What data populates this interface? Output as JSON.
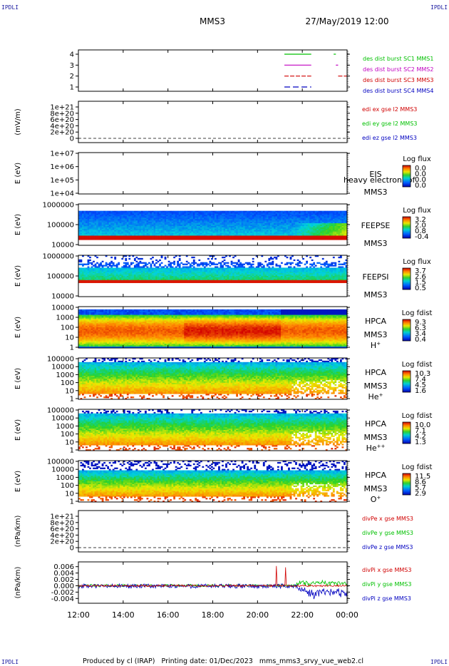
{
  "header": {
    "corner_tl": "IPDLI",
    "corner_tr": "IPDLI",
    "corner_bl": "IPDLI",
    "corner_br": "IPDLI",
    "mission": "MMS3",
    "datetime": "27/May/2019 12:00"
  },
  "footer": {
    "text": "Produced by cl (IRAP)   Printing date: 01/Dec/2023   mms_mms3_srvy_vue_web2.cl"
  },
  "chart_data": {
    "type": "multi-panel",
    "x_ticks": [
      "12:00",
      "14:00",
      "16:00",
      "18:00",
      "20:00",
      "22:00",
      "00:00"
    ],
    "x_range_hours": [
      0,
      12
    ],
    "panels": [
      {
        "id": "burst",
        "type": "line",
        "yticks": [
          "4",
          "3",
          "2",
          "1"
        ],
        "series": [
          {
            "name": "des dist burst SC1 MMS1",
            "color": "#00c000",
            "level": 4,
            "intervals_hours": [
              [
                9.2,
                10.4
              ],
              [
                11.4,
                11.5
              ]
            ]
          },
          {
            "name": "des dist burst SC2 MMS2",
            "color": "#c000c0",
            "level": 3,
            "intervals_hours": [
              [
                9.2,
                10.4
              ],
              [
                11.5,
                11.6
              ]
            ]
          },
          {
            "name": "des dist burst SC3 MMS3",
            "color": "#d00000",
            "level": 2,
            "intervals_hours": [
              [
                9.2,
                10.4
              ],
              [
                11.6,
                12.0
              ]
            ]
          },
          {
            "name": "des dist burst SC4 MMS4",
            "color": "#0000c0",
            "level": 1,
            "intervals_hours": [
              [
                9.2,
                10.4
              ]
            ]
          }
        ]
      },
      {
        "id": "edi",
        "type": "line",
        "ylabel": "(mV/m)",
        "yticks": [
          "1e+21",
          "8e+20",
          "6e+20",
          "4e+20",
          "2e+20",
          "0"
        ],
        "series": [
          {
            "name": "edi ex gse l2 MMS3",
            "color": "#d00000"
          },
          {
            "name": "edi ey gse l2 MMS3",
            "color": "#00c000"
          },
          {
            "name": "edi ez gse l2 MMS3",
            "color": "#0000c0"
          }
        ]
      },
      {
        "id": "eis",
        "type": "heatmap",
        "ylabel": "E (eV)",
        "yticks": [
          "1e+07",
          "1e+06",
          "1e+05",
          "1e+04"
        ],
        "labels": [
          "EIS",
          "MMS3"
        ],
        "overlay_text": "heavy electron tof",
        "cbar_title": "Log flux",
        "cbar_ticks": [
          "0.0",
          "0.0",
          "0.0",
          "0.0"
        ]
      },
      {
        "id": "feepse",
        "type": "heatmap",
        "ylabel": "E (eV)",
        "yticks": [
          "1000000",
          "100000",
          "10000"
        ],
        "labels": [
          "FEEPSE",
          "MMS3"
        ],
        "cbar_title": "Log flux",
        "cbar_ticks": [
          "3.2",
          "2.0",
          "0.8",
          "-0.4"
        ]
      },
      {
        "id": "feepsi",
        "type": "heatmap",
        "ylabel": "E (eV)",
        "yticks": [
          "1000000",
          "100000",
          "10000"
        ],
        "labels": [
          "FEEPSI",
          "MMS3"
        ],
        "cbar_title": "Log flux",
        "cbar_ticks": [
          "3.7",
          "2.6",
          "1.5",
          "0.5"
        ]
      },
      {
        "id": "hpca_h",
        "type": "heatmap",
        "ylabel": "E (eV)",
        "yticks": [
          "10000",
          "1000",
          "100",
          "10",
          "1"
        ],
        "labels": [
          "HPCA",
          "MMS3"
        ],
        "species": "H",
        "species_sup": "+",
        "cbar_title": "Log fdist",
        "cbar_ticks": [
          "9.3",
          "6.3",
          "3.4",
          "0.4"
        ]
      },
      {
        "id": "hpca_he",
        "type": "heatmap",
        "ylabel": "E (eV)",
        "yticks": [
          "100000",
          "10000",
          "1000",
          "100",
          "10",
          "1"
        ],
        "labels": [
          "HPCA",
          "MMS3"
        ],
        "species": "He",
        "species_sup": "+",
        "cbar_title": "Log fdist",
        "cbar_ticks": [
          "10.3",
          "7.4",
          "4.5",
          "1.6"
        ]
      },
      {
        "id": "hpca_hepp",
        "type": "heatmap",
        "ylabel": "E (eV)",
        "yticks": [
          "100000",
          "10000",
          "1000",
          "100",
          "10",
          "1"
        ],
        "labels": [
          "HPCA",
          "MMS3"
        ],
        "species": "He",
        "species_sup": "++",
        "cbar_title": "Log fdist",
        "cbar_ticks": [
          "10.0",
          "7.1",
          "4.2",
          "1.3"
        ]
      },
      {
        "id": "hpca_o",
        "type": "heatmap",
        "ylabel": "E (eV)",
        "yticks": [
          "100000",
          "10000",
          "1000",
          "100",
          "10",
          "1"
        ],
        "labels": [
          "HPCA",
          "MMS3"
        ],
        "species": "O",
        "species_sup": "+",
        "cbar_title": "Log fdist",
        "cbar_ticks": [
          "11.5",
          "8.6",
          "5.7",
          "2.9"
        ]
      },
      {
        "id": "divpe",
        "type": "line",
        "ylabel": "(nPa/km)",
        "yticks": [
          "1e+21",
          "8e+20",
          "6e+20",
          "4e+20",
          "2e+20",
          "0"
        ],
        "series": [
          {
            "name": "divPe x gse MMS3",
            "color": "#d00000"
          },
          {
            "name": "divPe y gse MMS3",
            "color": "#00c000"
          },
          {
            "name": "divPe z gse MMS3",
            "color": "#0000c0"
          }
        ]
      },
      {
        "id": "divpi",
        "type": "line",
        "ylabel": "(nPa/km)",
        "yticks": [
          "0.006",
          "0.004",
          "0.002",
          "0.000",
          "-0.002",
          "-0.004"
        ],
        "ylim": [
          -0.0055,
          0.0075
        ],
        "series": [
          {
            "name": "divPi x gse MMS3",
            "color": "#d00000"
          },
          {
            "name": "divPi y gse MMS3",
            "color": "#00c000"
          },
          {
            "name": "divPi z gse MMS3",
            "color": "#0000c0"
          }
        ]
      }
    ]
  }
}
